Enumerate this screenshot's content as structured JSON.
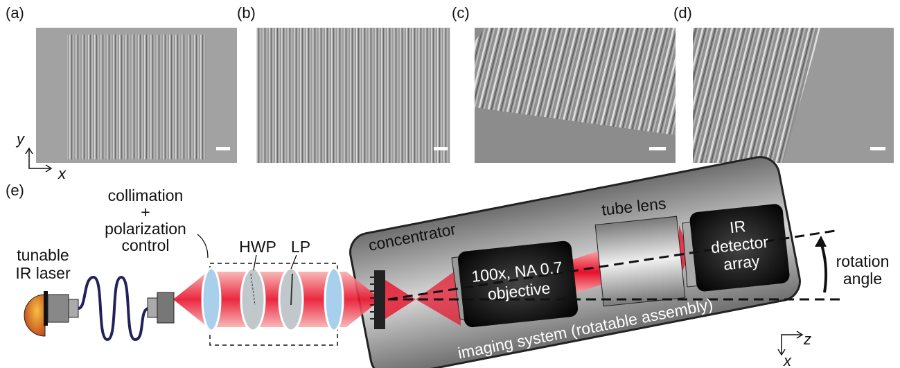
{
  "panels": {
    "labels": [
      "(a)",
      "(b)",
      "(c)",
      "(d)"
    ],
    "axes": {
      "y": "y",
      "x": "x"
    }
  },
  "setup": {
    "label": "(e)",
    "laser": [
      "tunable",
      "IR laser"
    ],
    "collimation": [
      "collimation",
      "+",
      "polarization",
      "control"
    ],
    "hwp": "HWP",
    "lp": "LP",
    "concentrator": "concentrator",
    "objective": [
      "100x, NA 0.7",
      "objective"
    ],
    "tube_lens": "tube lens",
    "detector": [
      "IR",
      "detector",
      "array"
    ],
    "rotation": [
      "rotation",
      "angle"
    ],
    "imaging_system": "imaging system (rotatable assembly)",
    "axes": {
      "z": "z",
      "x": "x"
    }
  }
}
